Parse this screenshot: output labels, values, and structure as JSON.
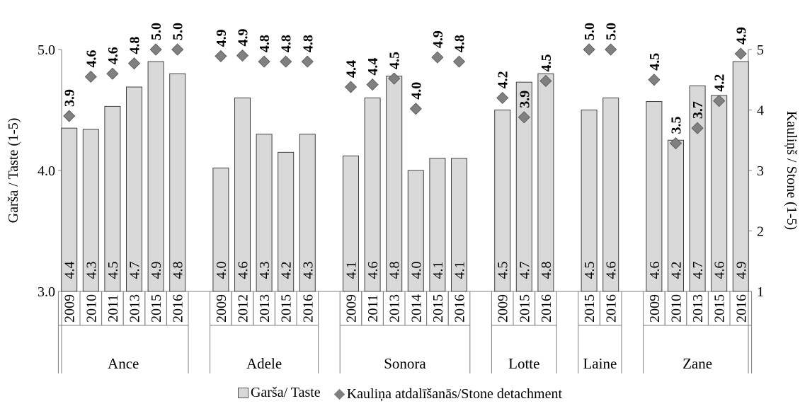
{
  "chart_data": {
    "type": "bar+scatter",
    "y_left": {
      "label": "Garša / Taste (1-5)",
      "ticks": [
        "3.0",
        "4.0",
        "5.0"
      ],
      "range": [
        3.0,
        5.0
      ]
    },
    "y_right": {
      "label": "Kauliņš / Stone (1-5)",
      "ticks": [
        "1",
        "2",
        "3",
        "4",
        "5"
      ],
      "range": [
        1,
        5
      ]
    },
    "series": [
      {
        "name": "Garša/ Taste",
        "kind": "bar",
        "axis": "left",
        "color": "#d9d9d9"
      },
      {
        "name": "Kauliņa atdalīšanās/Stone detachment",
        "kind": "marker",
        "axis": "right",
        "color": "#808080"
      }
    ],
    "groups": [
      {
        "name": "Ance",
        "items": [
          {
            "year": "2009",
            "taste": 4.35,
            "taste_label": "4.4",
            "stone": 3.9,
            "stone_label": "3.9"
          },
          {
            "year": "2010",
            "taste": 4.34,
            "taste_label": "4.3",
            "stone": 4.55,
            "stone_label": "4.6"
          },
          {
            "year": "2011",
            "taste": 4.53,
            "taste_label": "4.5",
            "stone": 4.6,
            "stone_label": "4.6"
          },
          {
            "year": "2013",
            "taste": 4.69,
            "taste_label": "4.7",
            "stone": 4.77,
            "stone_label": "4.8"
          },
          {
            "year": "2015",
            "taste": 4.9,
            "taste_label": "4.9",
            "stone": 5.0,
            "stone_label": "5.0"
          },
          {
            "year": "2016",
            "taste": 4.8,
            "taste_label": "4.8",
            "stone": 5.0,
            "stone_label": "5.0"
          }
        ]
      },
      {
        "name": "Adele",
        "items": [
          {
            "year": "2009",
            "taste": 4.02,
            "taste_label": "4.0",
            "stone": 4.89,
            "stone_label": "4.9"
          },
          {
            "year": "2012",
            "taste": 4.6,
            "taste_label": "4.6",
            "stone": 4.9,
            "stone_label": "4.9"
          },
          {
            "year": "2013",
            "taste": 4.3,
            "taste_label": "4.3",
            "stone": 4.8,
            "stone_label": "4.8"
          },
          {
            "year": "2015",
            "taste": 4.15,
            "taste_label": "4.2",
            "stone": 4.8,
            "stone_label": "4.8"
          },
          {
            "year": "2016",
            "taste": 4.3,
            "taste_label": "4.3",
            "stone": 4.8,
            "stone_label": "4.8"
          }
        ]
      },
      {
        "name": "Sonora",
        "items": [
          {
            "year": "2009",
            "taste": 4.12,
            "taste_label": "4.1",
            "stone": 4.38,
            "stone_label": "4.4"
          },
          {
            "year": "2011",
            "taste": 4.6,
            "taste_label": "4.6",
            "stone": 4.42,
            "stone_label": "4.4"
          },
          {
            "year": "2013",
            "taste": 4.78,
            "taste_label": "4.8",
            "stone": 4.52,
            "stone_label": "4.5"
          },
          {
            "year": "2014",
            "taste": 4.0,
            "taste_label": "4.0",
            "stone": 4.02,
            "stone_label": "4.0"
          },
          {
            "year": "2015",
            "taste": 4.1,
            "taste_label": "4.1",
            "stone": 4.87,
            "stone_label": "4.9"
          },
          {
            "year": "2016",
            "taste": 4.1,
            "taste_label": "4.1",
            "stone": 4.8,
            "stone_label": "4.8"
          }
        ]
      },
      {
        "name": "Lotte",
        "items": [
          {
            "year": "2009",
            "taste": 4.5,
            "taste_label": "4.5",
            "stone": 4.2,
            "stone_label": "4.2"
          },
          {
            "year": "2015",
            "taste": 4.73,
            "taste_label": "4.7",
            "stone": 3.88,
            "stone_label": "3.9"
          },
          {
            "year": "2016",
            "taste": 4.8,
            "taste_label": "4.8",
            "stone": 4.48,
            "stone_label": "4.5"
          }
        ]
      },
      {
        "name": "Laine",
        "items": [
          {
            "year": "2015",
            "taste": 4.5,
            "taste_label": "4.5",
            "stone": 5.0,
            "stone_label": "5.0"
          },
          {
            "year": "2016",
            "taste": 4.6,
            "taste_label": "4.6",
            "stone": 5.0,
            "stone_label": "5.0"
          }
        ]
      },
      {
        "name": "Zane",
        "items": [
          {
            "year": "2009",
            "taste": 4.57,
            "taste_label": "4.6",
            "stone": 4.5,
            "stone_label": "4.5"
          },
          {
            "year": "2010",
            "taste": 4.25,
            "taste_label": "4.2",
            "stone": 3.45,
            "stone_label": "3.5"
          },
          {
            "year": "2013",
            "taste": 4.7,
            "taste_label": "4.7",
            "stone": 3.7,
            "stone_label": "3.7"
          },
          {
            "year": "2015",
            "taste": 4.62,
            "taste_label": "4.6",
            "stone": 4.15,
            "stone_label": "4.2"
          },
          {
            "year": "2016",
            "taste": 4.9,
            "taste_label": "4.9",
            "stone": 4.93,
            "stone_label": "4.9"
          }
        ]
      }
    ]
  },
  "legend": {
    "taste": "Garša/ Taste",
    "stone": "Kauliņa atdalīšanās/Stone detachment"
  }
}
